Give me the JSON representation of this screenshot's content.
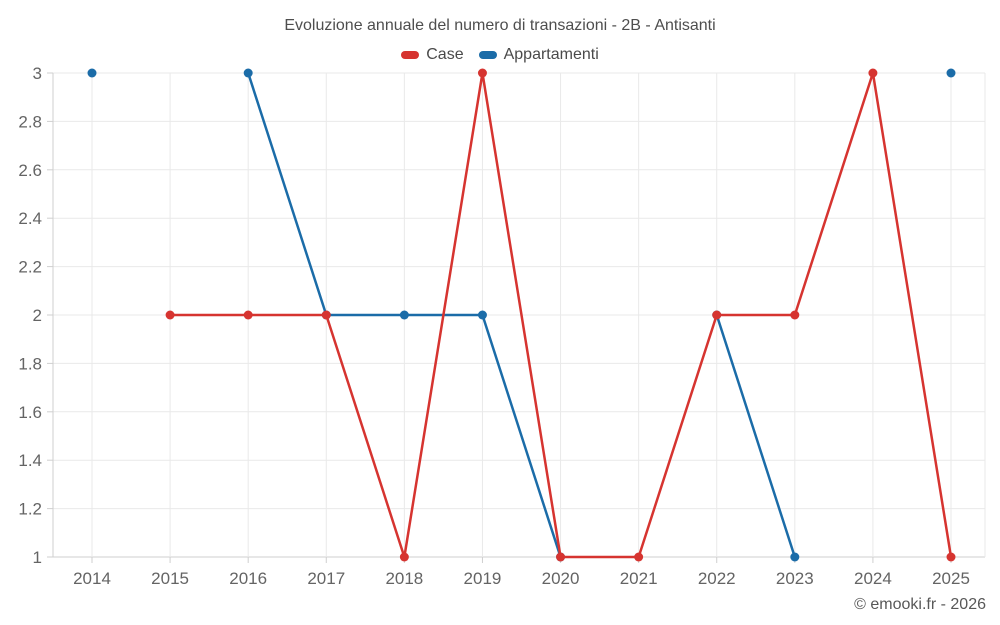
{
  "chart_data": {
    "type": "line",
    "title": "Evoluzione annuale del numero di transazioni - 2B - Antisanti",
    "x": [
      "2014",
      "2015",
      "2016",
      "2017",
      "2018",
      "2019",
      "2020",
      "2021",
      "2022",
      "2023",
      "2024",
      "2025"
    ],
    "xlabel": "",
    "ylabel": "",
    "ylim": [
      1,
      3
    ],
    "yticks": [
      3,
      2.8,
      2.6,
      2.4,
      2.2,
      2,
      1.8,
      1.6,
      1.4,
      1.2,
      1
    ],
    "ytick_labels": [
      "3",
      "2.8",
      "2.6",
      "2.4",
      "2.2",
      "2",
      "1.8",
      "1.6",
      "1.4",
      "1.2",
      "1"
    ],
    "grid": true,
    "legend_position": "top",
    "series": [
      {
        "name": "Case",
        "color": "#d63430",
        "values": [
          null,
          2,
          2,
          2,
          1,
          3,
          1,
          1,
          2,
          2,
          3,
          1
        ]
      },
      {
        "name": "Appartamenti",
        "color": "#1b6ca8",
        "values": [
          3,
          null,
          3,
          2,
          2,
          2,
          1,
          null,
          2,
          1,
          null,
          3
        ]
      }
    ]
  },
  "watermark": {
    "text": "© emooki.fr - 2026"
  }
}
